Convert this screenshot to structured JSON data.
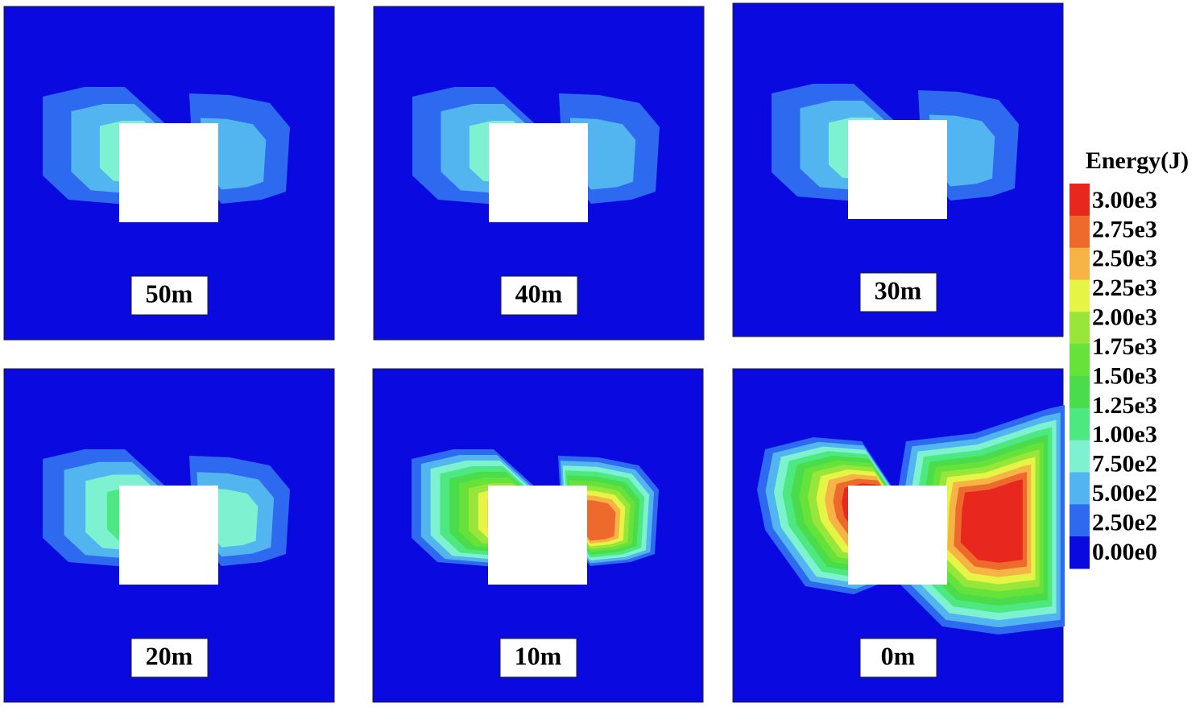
{
  "panels": [
    {
      "label": "50m"
    },
    {
      "label": "40m"
    },
    {
      "label": "30m"
    },
    {
      "label": "20m"
    },
    {
      "label": "10m"
    },
    {
      "label": "0m"
    }
  ],
  "colorbar": {
    "title": "Energy(J)",
    "labels": [
      "3.00e3",
      "2.75e3",
      "2.50e3",
      "2.25e3",
      "2.00e3",
      "1.75e3",
      "1.50e3",
      "1.25e3",
      "1.00e3",
      "7.50e2",
      "5.00e2",
      "2.50e2",
      "0.00e0"
    ],
    "colors": [
      "#e8281e",
      "#ee6a2c",
      "#f5b445",
      "#e6f545",
      "#98e63a",
      "#66e33a",
      "#4bdc4b",
      "#4ee882",
      "#7ef2d0",
      "#52b5f0",
      "#2e6af0",
      "#0a0ae0"
    ]
  }
}
